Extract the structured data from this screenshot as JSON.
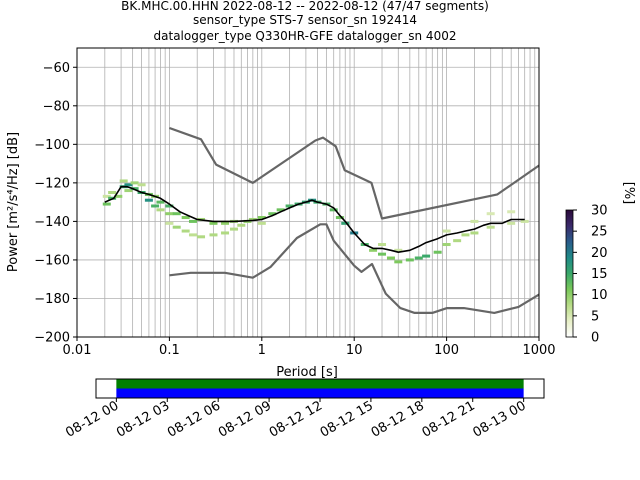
{
  "chart_data": [
    {
      "type": "heatmap",
      "title_lines": [
        "BK.MHC.00.HHN   2022-08-12 -- 2022-08-12  (47/47 segments)",
        "sensor_type STS-7 sensor_sn 192414",
        "datalogger_type Q330HR-GFE datalogger_sn 4002"
      ],
      "xlabel": "Period [s]",
      "ylabel": "Power [m²/s⁴/Hz] [dB]",
      "x_scale": "log",
      "xlim": [
        0.01,
        1000
      ],
      "ylim": [
        -200,
        -50
      ],
      "x_ticks": [
        0.01,
        0.1,
        1,
        10,
        100,
        1000
      ],
      "x_tick_labels": [
        "0.01",
        "0.1",
        "1",
        "10",
        "100",
        "1000"
      ],
      "y_ticks": [
        -200,
        -180,
        -160,
        -140,
        -120,
        -100,
        -80,
        -60
      ],
      "y_tick_labels": [
        "−200",
        "−180",
        "−160",
        "−140",
        "−120",
        "−100",
        "−80",
        "−60"
      ],
      "grid": true,
      "colorbar": {
        "label": "[%]",
        "range": [
          0,
          30
        ],
        "ticks": [
          0,
          5,
          10,
          15,
          20,
          25,
          30
        ],
        "colormap": [
          "#ffffff",
          "#e8f0c8",
          "#b8dc88",
          "#7ac85a",
          "#3aa86a",
          "#1f8a88",
          "#2a5c8a",
          "#3a2a6a",
          "#2a0a3a"
        ]
      },
      "series": [
        {
          "name": "noise model high",
          "color": "#666666",
          "x": [
            0.1,
            0.22,
            0.32,
            0.8,
            3.8,
            4.6,
            6.3,
            7.9,
            15.4,
            20,
            354.8,
            1000
          ],
          "y": [
            -91.5,
            -97.4,
            -110.5,
            -120,
            -98,
            -96.5,
            -101,
            -113.5,
            -120,
            -138.5,
            -126,
            -111
          ]
        },
        {
          "name": "noise model low",
          "color": "#666666",
          "x": [
            0.1,
            0.17,
            0.4,
            0.8,
            1.24,
            2.4,
            4.3,
            5,
            6,
            10,
            12,
            15.6,
            21.9,
            31.6,
            45,
            70,
            101,
            154,
            328,
            600,
            1000
          ],
          "y": [
            -168,
            -166.7,
            -166.7,
            -169.2,
            -163.7,
            -148.6,
            -141.5,
            -141.5,
            -150,
            -163,
            -166.2,
            -162.1,
            -177.5,
            -185,
            -187.5,
            -187.5,
            -185,
            -185,
            -187.5,
            -184.4,
            -178
          ]
        },
        {
          "name": "mode",
          "color": "#000000",
          "x": [
            0.02,
            0.025,
            0.03,
            0.035,
            0.04,
            0.05,
            0.06,
            0.08,
            0.1,
            0.13,
            0.16,
            0.2,
            0.3,
            0.5,
            0.8,
            1.0,
            1.3,
            1.6,
            2.0,
            2.5,
            3.0,
            3.5,
            4.0,
            5.0,
            6.0,
            7.0,
            8.0,
            10.0,
            13.0,
            16.0,
            20.0,
            25.0,
            30.0,
            40.0,
            50.0,
            60.0,
            80.0,
            100.0,
            130.0,
            160.0,
            200.0,
            250.0,
            300.0,
            400.0,
            500.0,
            700.0
          ],
          "y": [
            -130,
            -128,
            -122,
            -122,
            -123,
            -125,
            -126,
            -128,
            -131,
            -135,
            -137,
            -139,
            -140,
            -140,
            -139.5,
            -139,
            -137,
            -135,
            -133,
            -131,
            -130,
            -129,
            -130,
            -131,
            -133,
            -137,
            -140,
            -146,
            -152,
            -154,
            -154,
            -155,
            -156,
            -155,
            -153,
            -151,
            -149,
            -147,
            -146,
            -145,
            -144,
            -142,
            -141,
            -141,
            -139,
            -139
          ]
        }
      ],
      "density_cells": [
        {
          "period": 0.021,
          "db": -131,
          "pct": 12
        },
        {
          "period": 0.021,
          "db": -127,
          "pct": 6
        },
        {
          "period": 0.024,
          "db": -128,
          "pct": 14
        },
        {
          "period": 0.024,
          "db": -125,
          "pct": 8
        },
        {
          "period": 0.028,
          "db": -127,
          "pct": 10
        },
        {
          "period": 0.032,
          "db": -122,
          "pct": 16
        },
        {
          "period": 0.032,
          "db": -119,
          "pct": 8
        },
        {
          "period": 0.036,
          "db": -121,
          "pct": 18
        },
        {
          "period": 0.036,
          "db": -124,
          "pct": 9
        },
        {
          "period": 0.042,
          "db": -123,
          "pct": 14
        },
        {
          "period": 0.042,
          "db": -120,
          "pct": 9
        },
        {
          "period": 0.05,
          "db": -125,
          "pct": 15
        },
        {
          "period": 0.05,
          "db": -121,
          "pct": 7
        },
        {
          "period": 0.06,
          "db": -126,
          "pct": 12
        },
        {
          "period": 0.06,
          "db": -129,
          "pct": 18
        },
        {
          "period": 0.07,
          "db": -127,
          "pct": 10
        },
        {
          "period": 0.07,
          "db": -132,
          "pct": 14
        },
        {
          "period": 0.08,
          "db": -130,
          "pct": 13
        },
        {
          "period": 0.08,
          "db": -134,
          "pct": 8
        },
        {
          "period": 0.1,
          "db": -132,
          "pct": 14
        },
        {
          "period": 0.1,
          "db": -136,
          "pct": 10
        },
        {
          "period": 0.1,
          "db": -141,
          "pct": 6
        },
        {
          "period": 0.12,
          "db": -136,
          "pct": 12
        },
        {
          "period": 0.12,
          "db": -143,
          "pct": 9
        },
        {
          "period": 0.15,
          "db": -138,
          "pct": 11
        },
        {
          "period": 0.15,
          "db": -145,
          "pct": 8
        },
        {
          "period": 0.18,
          "db": -140,
          "pct": 12
        },
        {
          "period": 0.18,
          "db": -147,
          "pct": 7
        },
        {
          "period": 0.22,
          "db": -139,
          "pct": 9
        },
        {
          "period": 0.22,
          "db": -148,
          "pct": 8
        },
        {
          "period": 0.3,
          "db": -141,
          "pct": 11
        },
        {
          "period": 0.3,
          "db": -147,
          "pct": 8
        },
        {
          "period": 0.4,
          "db": -141,
          "pct": 10
        },
        {
          "period": 0.4,
          "db": -146,
          "pct": 8
        },
        {
          "period": 0.5,
          "db": -140,
          "pct": 9
        },
        {
          "period": 0.5,
          "db": -144,
          "pct": 8
        },
        {
          "period": 0.6,
          "db": -142,
          "pct": 8
        },
        {
          "period": 0.7,
          "db": -140,
          "pct": 10
        },
        {
          "period": 0.8,
          "db": -139,
          "pct": 9
        },
        {
          "period": 1.0,
          "db": -138,
          "pct": 11
        },
        {
          "period": 1.0,
          "db": -141,
          "pct": 7
        },
        {
          "period": 1.3,
          "db": -136,
          "pct": 12
        },
        {
          "period": 1.6,
          "db": -134,
          "pct": 12
        },
        {
          "period": 2.0,
          "db": -132,
          "pct": 14
        },
        {
          "period": 2.5,
          "db": -131,
          "pct": 15
        },
        {
          "period": 3.0,
          "db": -130,
          "pct": 16
        },
        {
          "period": 3.5,
          "db": -129,
          "pct": 18
        },
        {
          "period": 4.0,
          "db": -130,
          "pct": 15
        },
        {
          "period": 5.0,
          "db": -131,
          "pct": 14
        },
        {
          "period": 6.0,
          "db": -134,
          "pct": 13
        },
        {
          "period": 7.0,
          "db": -138,
          "pct": 12
        },
        {
          "period": 8.0,
          "db": -141,
          "pct": 16
        },
        {
          "period": 10.0,
          "db": -146,
          "pct": 20
        },
        {
          "period": 13.0,
          "db": -152,
          "pct": 14
        },
        {
          "period": 16.0,
          "db": -155,
          "pct": 10
        },
        {
          "period": 20.0,
          "db": -157,
          "pct": 12
        },
        {
          "period": 20.0,
          "db": -152,
          "pct": 7
        },
        {
          "period": 25.0,
          "db": -159,
          "pct": 11
        },
        {
          "period": 30.0,
          "db": -161,
          "pct": 11
        },
        {
          "period": 30.0,
          "db": -155,
          "pct": 6
        },
        {
          "period": 40.0,
          "db": -160,
          "pct": 12
        },
        {
          "period": 50.0,
          "db": -159,
          "pct": 14
        },
        {
          "period": 60.0,
          "db": -158,
          "pct": 15
        },
        {
          "period": 80.0,
          "db": -156,
          "pct": 12
        },
        {
          "period": 100.0,
          "db": -152,
          "pct": 9
        },
        {
          "period": 100.0,
          "db": -145,
          "pct": 6
        },
        {
          "period": 130.0,
          "db": -150,
          "pct": 8
        },
        {
          "period": 160.0,
          "db": -147,
          "pct": 8
        },
        {
          "period": 200.0,
          "db": -146,
          "pct": 8
        },
        {
          "period": 200.0,
          "db": -140,
          "pct": 6
        },
        {
          "period": 300.0,
          "db": -143,
          "pct": 7
        },
        {
          "period": 300.0,
          "db": -136,
          "pct": 5
        },
        {
          "period": 500.0,
          "db": -141,
          "pct": 6
        },
        {
          "period": 500.0,
          "db": -135,
          "pct": 5
        },
        {
          "period": 700.0,
          "db": -140,
          "pct": 6
        }
      ]
    },
    {
      "type": "timeline",
      "tick_labels": [
        "08-12 00",
        "08-12 03",
        "08-12 06",
        "08-12 09",
        "08-12 12",
        "08-12 15",
        "08-12 18",
        "08-12 21",
        "08-13 00"
      ],
      "bars": [
        {
          "color": "#008000",
          "start_hour": 0,
          "end_hour": 24
        },
        {
          "color": "#0000ff",
          "start_hour": 0,
          "end_hour": 24
        }
      ],
      "range_hours": [
        -1.2,
        25.2
      ]
    }
  ]
}
